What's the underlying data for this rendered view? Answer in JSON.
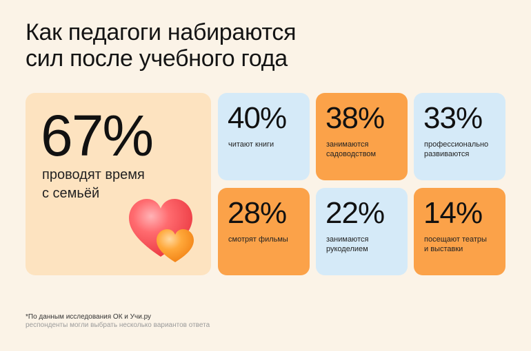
{
  "title": {
    "line1": "Как педагоги набираются",
    "line2": "сил после учебного года"
  },
  "main_stat": {
    "value": "67%",
    "label_line1": "проводят время",
    "label_line2": "с семьёй",
    "icon": "two-hearts-icon"
  },
  "cards": [
    {
      "value": "40%",
      "label_line1": "читают книги",
      "label_line2": "",
      "color": "#d5eaf8"
    },
    {
      "value": "38%",
      "label_line1": "занимаются",
      "label_line2": "садоводством",
      "color": "#fba249"
    },
    {
      "value": "33%",
      "label_line1": "профессионально",
      "label_line2": "развиваются",
      "color": "#d5eaf8"
    },
    {
      "value": "28%",
      "label_line1": "смотрят фильмы",
      "label_line2": "",
      "color": "#fba249"
    },
    {
      "value": "22%",
      "label_line1": "занимаются",
      "label_line2": "рукоделием",
      "color": "#d5eaf8"
    },
    {
      "value": "14%",
      "label_line1": "посещают театры",
      "label_line2": "и выставки",
      "color": "#fba249"
    }
  ],
  "footnote": {
    "line1": "*По данным исследования ОК и Учи.ру",
    "line2": "респонденты могли выбрать несколько вариантов ответа"
  },
  "colors": {
    "background": "#fbf3e7",
    "main_card": "#fde3c0",
    "blue_card": "#d5eaf8",
    "orange_card": "#fba249"
  }
}
